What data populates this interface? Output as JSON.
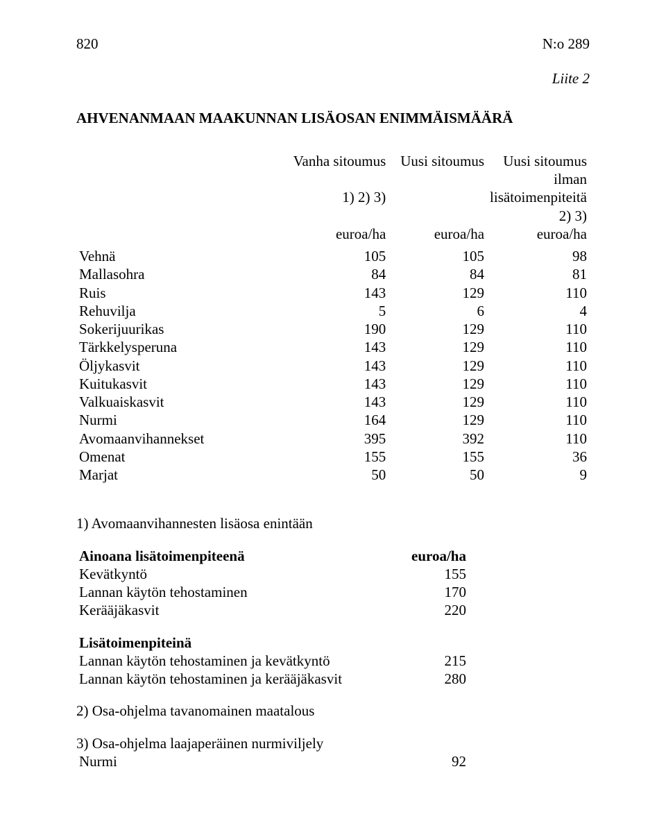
{
  "header": {
    "page_number": "820",
    "doc_number": "N:o 289"
  },
  "liite": "Liite 2",
  "title": "AHVENANMAAN MAAKUNNAN LISÄOSAN ENIMMÄISMÄÄRÄ",
  "columns": {
    "col1": {
      "l1": "Vanha sitoumus",
      "l2": "1) 2) 3)",
      "l3": "euroa/ha"
    },
    "col2": {
      "l1": "Uusi sitoumus",
      "l2": "",
      "l3": "euroa/ha"
    },
    "col3": {
      "l1": "Uusi sitoumus ilman",
      "l2": "lisätoimenpiteitä 2) 3)",
      "l3": "euroa/ha"
    }
  },
  "rows": [
    {
      "label": "Vehnä",
      "v": [
        "105",
        "105",
        "98"
      ]
    },
    {
      "label": "Mallasohra",
      "v": [
        "84",
        "84",
        "81"
      ]
    },
    {
      "label": "Ruis",
      "v": [
        "143",
        "129",
        "110"
      ]
    },
    {
      "label": "Rehuvilja",
      "v": [
        "5",
        "6",
        "4"
      ]
    },
    {
      "label": "Sokerijuurikas",
      "v": [
        "190",
        "129",
        "110"
      ]
    },
    {
      "label": "Tärkkelysperuna",
      "v": [
        "143",
        "129",
        "110"
      ]
    },
    {
      "label": "Öljykasvit",
      "v": [
        "143",
        "129",
        "110"
      ]
    },
    {
      "label": "Kuitukasvit",
      "v": [
        "143",
        "129",
        "110"
      ]
    },
    {
      "label": "Valkuaiskasvit",
      "v": [
        "143",
        "129",
        "110"
      ]
    },
    {
      "label": "Nurmi",
      "v": [
        "164",
        "129",
        "110"
      ]
    },
    {
      "label": "Avomaanvihannekset",
      "v": [
        "395",
        "392",
        "110"
      ]
    },
    {
      "label": "Omenat",
      "v": [
        "155",
        "155",
        "36"
      ]
    },
    {
      "label": "Marjat",
      "v": [
        "50",
        "50",
        "9"
      ]
    }
  ],
  "footnote1": {
    "heading": "1) Avomaanvihannesten lisäosa enintään",
    "block_a_title": "Ainoana lisätoimenpiteenä",
    "unit": "euroa/ha",
    "block_a_rows": [
      {
        "label": "Kevätkyntö",
        "value": "155"
      },
      {
        "label": "Lannan käytön tehostaminen",
        "value": "170"
      },
      {
        "label": "Kerääjäkasvit",
        "value": "220"
      }
    ],
    "block_b_title": "Lisätoimenpiteinä",
    "block_b_rows": [
      {
        "label": "Lannan käytön tehostaminen ja kevätkyntö",
        "value": "215"
      },
      {
        "label": "Lannan käytön tehostaminen ja kerääjäkasvit",
        "value": "280"
      }
    ]
  },
  "footnote2": "2) Osa-ohjelma tavanomainen maatalous",
  "footnote3": {
    "heading": "3) Osa-ohjelma laajaperäinen nurmiviljely",
    "row": {
      "label": "Nurmi",
      "value": "92"
    }
  }
}
